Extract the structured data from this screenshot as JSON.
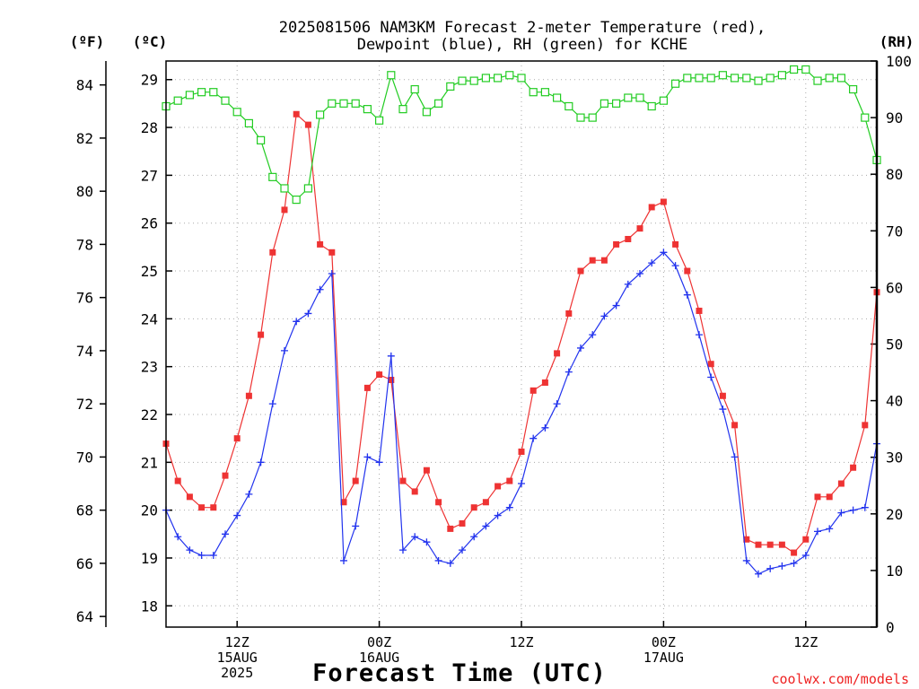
{
  "chart_data": {
    "type": "line",
    "title_line1": "2025081506 NAM3KM Forecast 2-meter Temperature (red),",
    "title_line2": "Dewpoint (blue), RH (green) for KCHE",
    "left_unit_f": "(ºF)",
    "left_unit_c": "(ºC)",
    "right_unit": "(RH)",
    "xlabel": "Forecast Time (UTC)",
    "credit": "coolwx.com/models",
    "x_ticks": [
      {
        "hour": 6,
        "label1": "12Z",
        "label2": "15AUG",
        "label3": "2025"
      },
      {
        "hour": 18,
        "label1": "00Z",
        "label2": "16AUG",
        "label3": ""
      },
      {
        "hour": 30,
        "label1": "12Z",
        "label2": "",
        "label3": ""
      },
      {
        "hour": 42,
        "label1": "00Z",
        "label2": "17AUG",
        "label3": ""
      },
      {
        "hour": 54,
        "label1": "12Z",
        "label2": "",
        "label3": ""
      }
    ],
    "x_range_hours": [
      0,
      60
    ],
    "f_ticks": [
      64,
      66,
      68,
      70,
      72,
      74,
      76,
      78,
      80,
      82,
      84
    ],
    "c_ticks": [
      18,
      19,
      20,
      21,
      22,
      23,
      24,
      25,
      26,
      27,
      28,
      29
    ],
    "rh_ticks": [
      0,
      10,
      20,
      30,
      40,
      50,
      60,
      70,
      80,
      90,
      100
    ],
    "temp_range_f": [
      63.6,
      84.9
    ],
    "rh_range": [
      0,
      100
    ],
    "grid": true,
    "series": [
      {
        "name": "Temperature",
        "color": "#ee3333",
        "marker": "filled-square",
        "values_f": [
          70.5,
          69.1,
          68.5,
          68.1,
          68.1,
          69.3,
          70.7,
          72.3,
          74.6,
          77.7,
          79.3,
          82.9,
          82.5,
          78.0,
          77.7,
          68.3,
          69.1,
          72.6,
          73.1,
          72.9,
          69.1,
          68.7,
          69.5,
          68.3,
          67.3,
          67.5,
          68.1,
          68.3,
          68.9,
          69.1,
          70.2,
          72.5,
          72.8,
          73.9,
          75.4,
          77.0,
          77.4,
          77.4,
          78.0,
          78.2,
          78.6,
          79.4,
          79.6,
          78.0,
          77.0,
          75.5,
          73.5,
          72.3,
          71.2,
          66.9,
          66.7,
          66.7,
          66.7,
          66.4,
          66.9,
          68.5,
          68.5,
          69.0,
          69.6,
          71.2,
          76.2
        ]
      },
      {
        "name": "Dewpoint",
        "color": "#2233ee",
        "marker": "plus",
        "values_f": [
          68.0,
          67.0,
          66.5,
          66.3,
          66.3,
          67.1,
          67.8,
          68.6,
          69.8,
          72.0,
          74.0,
          75.1,
          75.4,
          76.3,
          76.9,
          66.1,
          67.4,
          70.0,
          69.8,
          73.8,
          66.5,
          67.0,
          66.8,
          66.1,
          66.0,
          66.5,
          67.0,
          67.4,
          67.8,
          68.1,
          69.0,
          70.7,
          71.1,
          72.0,
          73.2,
          74.1,
          74.6,
          75.3,
          75.7,
          76.5,
          76.9,
          77.3,
          77.7,
          77.2,
          76.1,
          74.6,
          73.0,
          71.8,
          70.0,
          66.1,
          65.6,
          65.8,
          65.9,
          66.0,
          66.3,
          67.2,
          67.3,
          67.9,
          68.0,
          68.1,
          70.5
        ]
      },
      {
        "name": "RH",
        "color": "#22cc22",
        "marker": "open-square",
        "values": [
          92,
          93,
          94,
          94.5,
          94.5,
          93,
          91,
          89,
          86,
          79.5,
          77.5,
          75.5,
          77.5,
          90.5,
          92.5,
          92.5,
          92.5,
          91.5,
          89.5,
          97.5,
          91.5,
          95,
          91,
          92.5,
          95.5,
          96.5,
          96.5,
          97,
          97,
          97.5,
          97,
          94.5,
          94.5,
          93.5,
          92,
          90,
          90,
          92.5,
          92.5,
          93.5,
          93.5,
          92,
          93,
          96,
          97,
          97,
          97,
          97.5,
          97,
          97,
          96.5,
          97,
          97.5,
          98.5,
          98.5,
          96.5,
          97,
          97,
          95,
          90,
          82.5
        ]
      }
    ]
  }
}
